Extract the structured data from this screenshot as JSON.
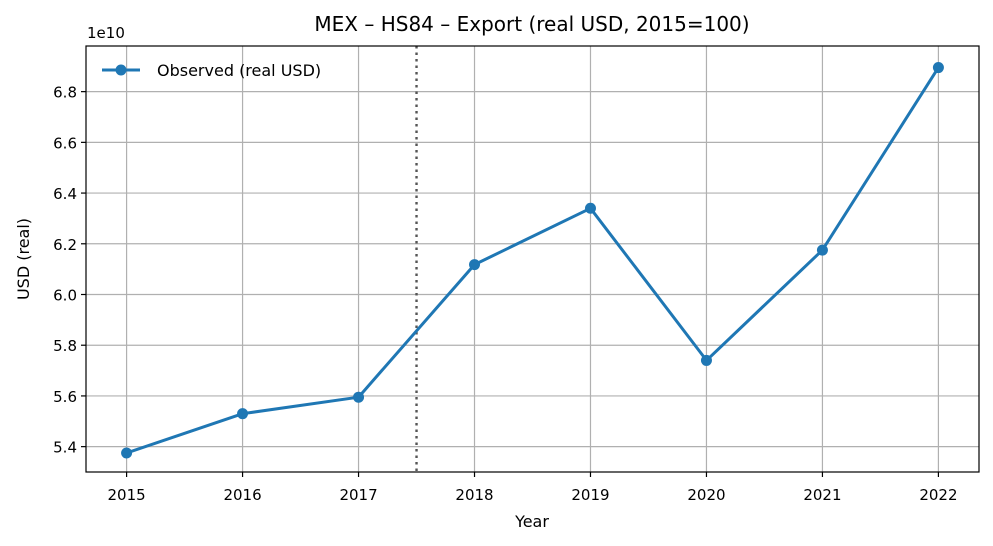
{
  "chart_data": {
    "type": "line",
    "title": "MEX – HS84 – Export (real USD, 2015=100)",
    "xlabel": "Year",
    "ylabel": "USD (real)",
    "y_scale_label": "1e10",
    "x": [
      2015,
      2016,
      2017,
      2018,
      2019,
      2020,
      2021,
      2022
    ],
    "series": [
      {
        "name": "Observed (real USD)",
        "color": "#1f77b4",
        "values": [
          53750000000,
          55300000000,
          55950000000,
          61180000000,
          63400000000,
          57400000000,
          61750000000,
          68950000000
        ]
      }
    ],
    "xlim": [
      2014.65,
      2022.35
    ],
    "ylim": [
      53000000000,
      69800000000
    ],
    "x_ticks": [
      "2015",
      "2016",
      "2017",
      "2018",
      "2019",
      "2020",
      "2021",
      "2022"
    ],
    "y_ticks": [
      54000000000,
      56000000000,
      58000000000,
      60000000000,
      62000000000,
      64000000000,
      66000000000,
      68000000000
    ],
    "y_tick_labels": [
      "5.4",
      "5.6",
      "5.8",
      "6.0",
      "6.2",
      "6.4",
      "6.6",
      "6.8"
    ],
    "vertical_marker": {
      "x": 2017.5,
      "style": "dotted",
      "color": "#555555"
    },
    "grid": true,
    "legend_placement": "top-left"
  }
}
